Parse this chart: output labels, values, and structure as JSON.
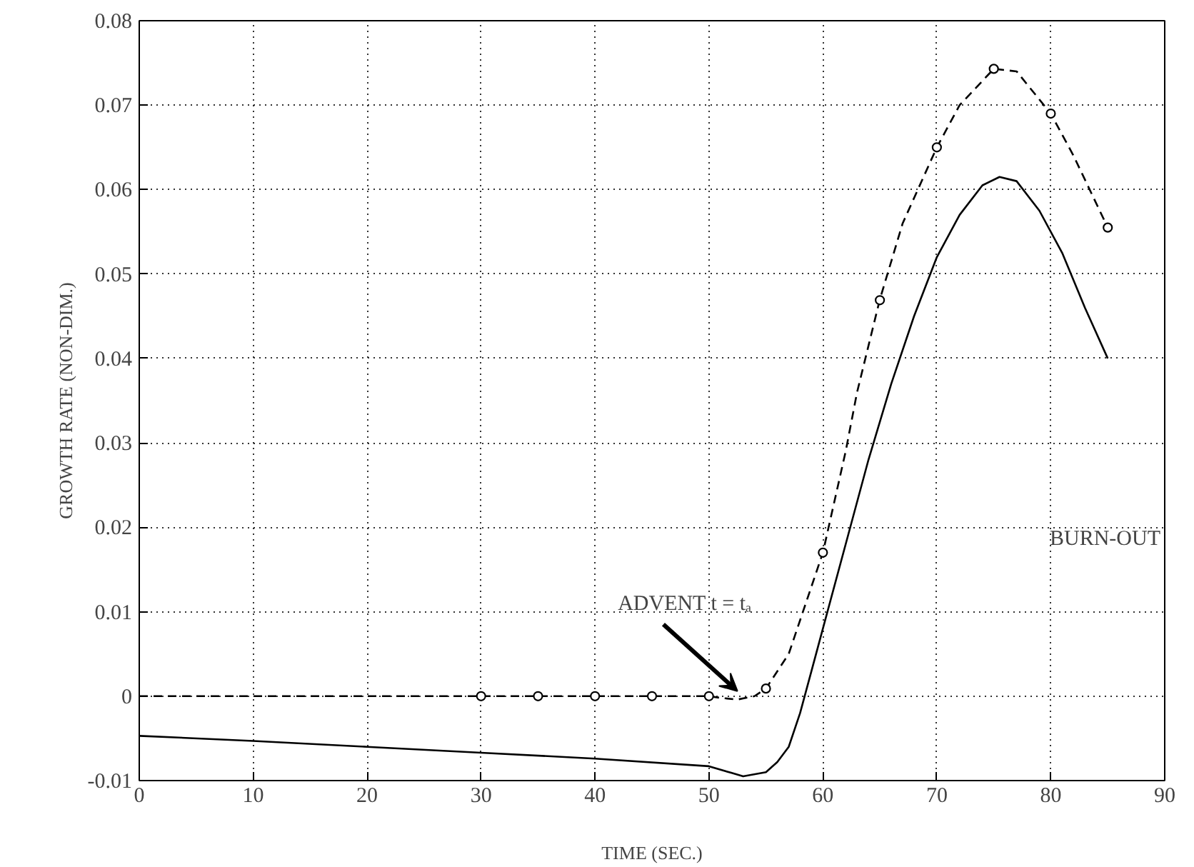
{
  "chart_data": {
    "type": "line",
    "xlabel": "TIME (SEC.)",
    "ylabel": "GROWTH RATE (NON-DIM.)",
    "xlim": [
      0,
      90
    ],
    "ylim": [
      -0.01,
      0.08
    ],
    "xticks": [
      0,
      10,
      20,
      30,
      40,
      50,
      60,
      70,
      80,
      90
    ],
    "yticks": [
      -0.01,
      0,
      0.01,
      0.02,
      0.03,
      0.04,
      0.05,
      0.06,
      0.07,
      0.08
    ],
    "grid": true,
    "series": [
      {
        "color": "#000000",
        "line_style": "solid",
        "marker": "none",
        "x": [
          0,
          10,
          20,
          30,
          40,
          50,
          52,
          53,
          55,
          56,
          57,
          58,
          59,
          60,
          62,
          64,
          66,
          68,
          70,
          72,
          74,
          75.5,
          77,
          79,
          81,
          83,
          85
        ],
        "values": [
          -0.0047,
          -0.0053,
          -0.006,
          -0.0067,
          -0.0074,
          -0.0083,
          -0.0091,
          -0.0095,
          -0.009,
          -0.0078,
          -0.006,
          -0.002,
          0.003,
          0.008,
          0.018,
          0.028,
          0.037,
          0.045,
          0.052,
          0.057,
          0.0605,
          0.0615,
          0.061,
          0.0575,
          0.0525,
          0.046,
          0.04
        ]
      },
      {
        "color": "#000000",
        "line_style": "dashed",
        "marker": "none",
        "x": [
          0,
          10,
          20,
          30,
          35,
          40,
          45,
          50,
          51,
          52.5,
          54,
          55,
          57,
          60,
          62,
          63,
          65,
          67,
          70,
          72,
          75,
          77,
          80,
          82,
          85
        ],
        "values": [
          0,
          0,
          0,
          0,
          0,
          0,
          0,
          0,
          -0.0002,
          -0.0004,
          0,
          0.0009,
          0.005,
          0.017,
          0.029,
          0.036,
          0.047,
          0.056,
          0.065,
          0.07,
          0.0743,
          0.074,
          0.069,
          0.064,
          0.0555
        ]
      },
      {
        "type": "scatter",
        "color": "#000000",
        "marker": "circle",
        "x": [
          30,
          35,
          40,
          45,
          50,
          55,
          60,
          65,
          70,
          75,
          80,
          85
        ],
        "values": [
          0,
          0,
          0,
          0,
          0,
          0.0009,
          0.017,
          0.0469,
          0.065,
          0.0743,
          0.069,
          0.0555
        ]
      }
    ],
    "annotations": [
      {
        "text": "ADVENT t = tₐ",
        "x": 52.5,
        "y": 0
      },
      "BURN-OUT"
    ]
  }
}
